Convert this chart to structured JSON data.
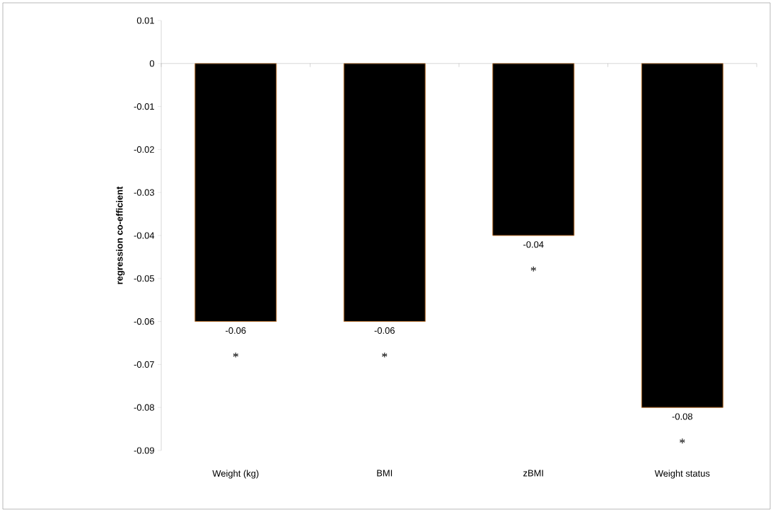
{
  "chart_data": {
    "type": "bar",
    "ylabel": "regression co-efficient",
    "categories": [
      "Weight (kg)",
      "BMI",
      "zBMI",
      "Weight status"
    ],
    "values": [
      -0.06,
      -0.06,
      -0.04,
      -0.08
    ],
    "color": "#000000",
    "ylim": [
      -0.09,
      0.01
    ],
    "yticks": [
      -0.09,
      -0.08,
      -0.07,
      -0.06,
      -0.05,
      -0.04,
      -0.03,
      -0.02,
      -0.01,
      0,
      0.01
    ],
    "data_labels": true,
    "annotations": [
      "*",
      "*",
      "*",
      "*"
    ]
  }
}
